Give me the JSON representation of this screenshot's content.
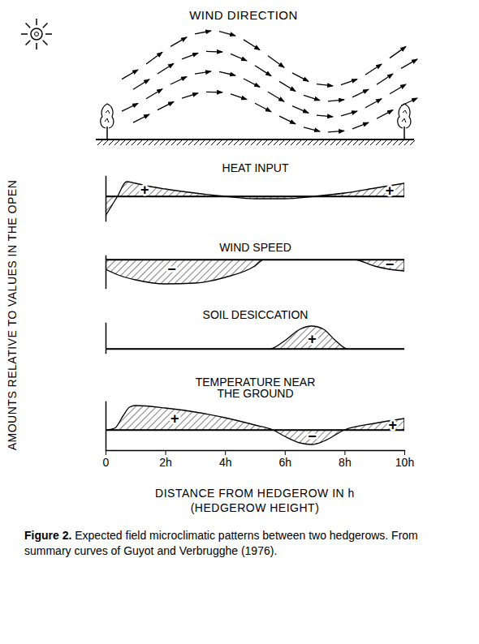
{
  "wind_panel": {
    "title": "WIND DIRECTION"
  },
  "ylabel": "AMOUNTS RELATIVE TO VALUES IN THE OPEN",
  "xlabel": [
    "DISTANCE FROM HEDGEROW IN h",
    "(HEDGEROW HEIGHT)"
  ],
  "caption": {
    "label": "Figure 2.",
    "text": "Expected field microclimatic patterns between two hedgerows. From summary curves of Guyot and Verbrugghe (1976)."
  },
  "chart_data": [
    {
      "type": "area",
      "title": "HEAT INPUT",
      "x": [
        0,
        0.2,
        0.4,
        0.7,
        1,
        1.5,
        2,
        3,
        4,
        5,
        6,
        7,
        8,
        9,
        9.5,
        10
      ],
      "values": [
        -24,
        -12,
        0,
        18,
        16,
        12,
        9,
        4,
        0,
        -3,
        -3,
        0,
        4,
        10,
        13,
        16
      ],
      "xlim": [
        0,
        10
      ],
      "ylim": [
        -30,
        25
      ],
      "tick_labels": false,
      "color": "#000000",
      "annotations": [
        {
          "x": 1.3,
          "y": 8,
          "text": "+"
        },
        {
          "x": 9.5,
          "y": 7,
          "text": "+"
        }
      ]
    },
    {
      "type": "area",
      "title": "WIND SPEED",
      "x": [
        0,
        0.5,
        1,
        2,
        3,
        4,
        5,
        5.3,
        6,
        7,
        8.3,
        9,
        9.5,
        10
      ],
      "values": [
        -12,
        -20,
        -25,
        -30,
        -29,
        -22,
        -8,
        0,
        0,
        0,
        0,
        -8,
        -12,
        -14
      ],
      "xlim": [
        0,
        10
      ],
      "ylim": [
        -35,
        5
      ],
      "tick_labels": false,
      "color": "#000000",
      "annotations": [
        {
          "x": 2.2,
          "y": -12,
          "text": "−"
        },
        {
          "x": 9.5,
          "y": -6,
          "text": "−"
        }
      ]
    },
    {
      "type": "area",
      "title": "SOIL DESICCATION",
      "x": [
        0,
        5.5,
        6,
        6.5,
        6.9,
        7.3,
        7.7,
        8.1,
        10
      ],
      "values": [
        0,
        0,
        10,
        24,
        28,
        24,
        10,
        0,
        0
      ],
      "xlim": [
        0,
        10
      ],
      "ylim": [
        -5,
        32
      ],
      "tick_labels": false,
      "color": "#000000",
      "annotations": [
        {
          "x": 6.9,
          "y": 12,
          "text": "+"
        }
      ]
    },
    {
      "type": "area",
      "title": "TEMPERATURE NEAR THE GROUND",
      "x": [
        0,
        0.3,
        0.6,
        0.8,
        1,
        2,
        3,
        4,
        5,
        5.6,
        6,
        6.5,
        6.9,
        7.3,
        8,
        9,
        10
      ],
      "values": [
        0,
        2,
        18,
        28,
        30,
        27,
        22,
        15,
        6,
        0,
        -8,
        -16,
        -18,
        -14,
        0,
        8,
        14
      ],
      "xlim": [
        0,
        10
      ],
      "ylim": [
        -25,
        35
      ],
      "xticks": [
        0,
        {
          "value": 2,
          "label": "2h"
        },
        {
          "value": 4,
          "label": "4h"
        },
        {
          "value": 6,
          "label": "6h"
        },
        {
          "value": 8,
          "label": "8h"
        },
        {
          "value": 10,
          "label": "10h"
        }
      ],
      "tick_labels": "x",
      "color": "#000000",
      "annotations": [
        {
          "x": 2.3,
          "y": 14,
          "text": "+"
        },
        {
          "x": 6.9,
          "y": -8,
          "text": "−"
        },
        {
          "x": 9.6,
          "y": 6,
          "text": "+"
        }
      ]
    }
  ]
}
